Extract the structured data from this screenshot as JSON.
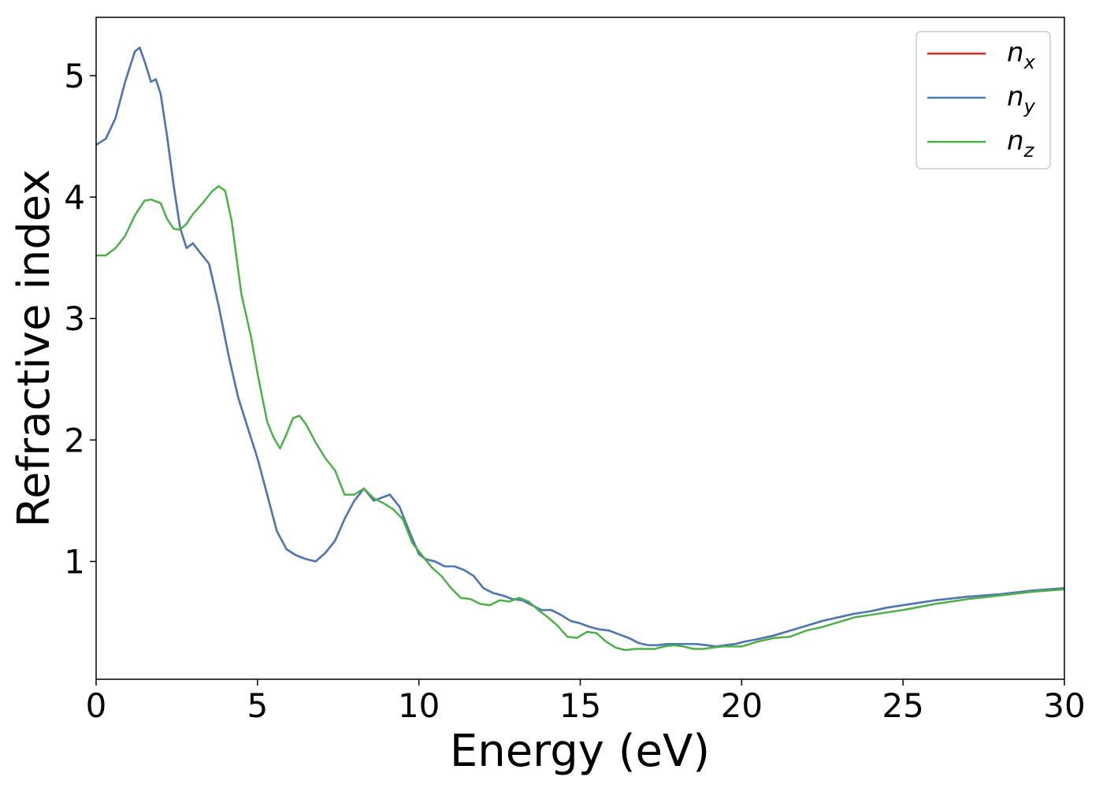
{
  "chart_data": {
    "type": "line",
    "title": "",
    "xlabel": "Energy (eV)",
    "ylabel": "Refractive index",
    "xlim": [
      0,
      30
    ],
    "ylim": [
      0.03,
      5.48
    ],
    "xticks": [
      0,
      5,
      10,
      15,
      20,
      25,
      30
    ],
    "yticks": [
      1,
      2,
      3,
      4,
      5
    ],
    "grid": false,
    "legend": "top-right",
    "series": [
      {
        "name": "n_x",
        "label_base": "n",
        "label_sub": "x",
        "color": "#d62728",
        "x": [
          0,
          0.3,
          0.6,
          0.9,
          1.2,
          1.35,
          1.5,
          1.7,
          1.85,
          2.0,
          2.2,
          2.4,
          2.6,
          2.8,
          3.0,
          3.2,
          3.5,
          3.8,
          4.1,
          4.4,
          4.7,
          5.0,
          5.3,
          5.6,
          5.9,
          6.2,
          6.5,
          6.8,
          7.1,
          7.4,
          7.7,
          8.0,
          8.3,
          8.6,
          8.9,
          9.1,
          9.4,
          9.7,
          10.0,
          10.2,
          10.5,
          10.8,
          11.1,
          11.4,
          11.7,
          12.0,
          12.3,
          12.6,
          12.9,
          13.2,
          13.5,
          13.8,
          14.1,
          14.4,
          14.7,
          15.0,
          15.3,
          15.6,
          15.9,
          16.2,
          16.5,
          16.8,
          17.1,
          17.4,
          17.7,
          18.0,
          18.3,
          18.6,
          18.9,
          19.2,
          19.5,
          19.8,
          20.1,
          20.5,
          21.0,
          21.5,
          22.0,
          22.5,
          23.0,
          23.5,
          24.0,
          24.5,
          25.0,
          26.0,
          27.0,
          28.0,
          29.0,
          30.0
        ],
        "y": [
          4.43,
          4.48,
          4.65,
          4.95,
          5.2,
          5.23,
          5.12,
          4.95,
          4.97,
          4.85,
          4.5,
          4.1,
          3.75,
          3.58,
          3.62,
          3.55,
          3.45,
          3.1,
          2.7,
          2.35,
          2.1,
          1.85,
          1.55,
          1.25,
          1.1,
          1.05,
          1.02,
          1.0,
          1.07,
          1.17,
          1.35,
          1.5,
          1.6,
          1.5,
          1.53,
          1.55,
          1.45,
          1.25,
          1.06,
          1.02,
          1.0,
          0.96,
          0.96,
          0.93,
          0.88,
          0.78,
          0.74,
          0.72,
          0.69,
          0.68,
          0.64,
          0.6,
          0.6,
          0.56,
          0.51,
          0.49,
          0.46,
          0.44,
          0.43,
          0.4,
          0.37,
          0.33,
          0.31,
          0.31,
          0.32,
          0.32,
          0.32,
          0.32,
          0.31,
          0.3,
          0.31,
          0.32,
          0.34,
          0.36,
          0.39,
          0.43,
          0.47,
          0.51,
          0.54,
          0.57,
          0.59,
          0.62,
          0.64,
          0.68,
          0.71,
          0.73,
          0.76,
          0.78
        ]
      },
      {
        "name": "n_y",
        "label_base": "n",
        "label_sub": "y",
        "color": "#4a7ab5",
        "x": [
          0,
          0.3,
          0.6,
          0.9,
          1.2,
          1.35,
          1.5,
          1.7,
          1.85,
          2.0,
          2.2,
          2.4,
          2.6,
          2.8,
          3.0,
          3.2,
          3.5,
          3.8,
          4.1,
          4.4,
          4.7,
          5.0,
          5.3,
          5.6,
          5.9,
          6.2,
          6.5,
          6.8,
          7.1,
          7.4,
          7.7,
          8.0,
          8.3,
          8.6,
          8.9,
          9.1,
          9.4,
          9.7,
          10.0,
          10.2,
          10.5,
          10.8,
          11.1,
          11.4,
          11.7,
          12.0,
          12.3,
          12.6,
          12.9,
          13.2,
          13.5,
          13.8,
          14.1,
          14.4,
          14.7,
          15.0,
          15.3,
          15.6,
          15.9,
          16.2,
          16.5,
          16.8,
          17.1,
          17.4,
          17.7,
          18.0,
          18.3,
          18.6,
          18.9,
          19.2,
          19.5,
          19.8,
          20.1,
          20.5,
          21.0,
          21.5,
          22.0,
          22.5,
          23.0,
          23.5,
          24.0,
          24.5,
          25.0,
          26.0,
          27.0,
          28.0,
          29.0,
          30.0
        ],
        "y": [
          4.43,
          4.48,
          4.65,
          4.95,
          5.2,
          5.23,
          5.12,
          4.95,
          4.97,
          4.85,
          4.5,
          4.1,
          3.75,
          3.58,
          3.62,
          3.55,
          3.45,
          3.1,
          2.7,
          2.35,
          2.1,
          1.85,
          1.55,
          1.25,
          1.1,
          1.05,
          1.02,
          1.0,
          1.07,
          1.17,
          1.35,
          1.5,
          1.6,
          1.5,
          1.53,
          1.55,
          1.45,
          1.25,
          1.06,
          1.02,
          1.0,
          0.96,
          0.96,
          0.93,
          0.88,
          0.78,
          0.74,
          0.72,
          0.69,
          0.68,
          0.64,
          0.6,
          0.6,
          0.56,
          0.51,
          0.49,
          0.46,
          0.44,
          0.43,
          0.4,
          0.37,
          0.33,
          0.31,
          0.31,
          0.32,
          0.32,
          0.32,
          0.32,
          0.31,
          0.3,
          0.31,
          0.32,
          0.34,
          0.36,
          0.39,
          0.43,
          0.47,
          0.51,
          0.54,
          0.57,
          0.59,
          0.62,
          0.64,
          0.68,
          0.71,
          0.73,
          0.76,
          0.78
        ]
      },
      {
        "name": "n_z",
        "label_base": "n",
        "label_sub": "z",
        "color": "#4daf4a",
        "x": [
          0,
          0.3,
          0.6,
          0.9,
          1.2,
          1.5,
          1.7,
          2.0,
          2.2,
          2.4,
          2.6,
          2.8,
          3.0,
          3.3,
          3.6,
          3.8,
          4.0,
          4.2,
          4.5,
          4.8,
          5.0,
          5.3,
          5.5,
          5.7,
          5.9,
          6.1,
          6.3,
          6.5,
          6.8,
          7.1,
          7.4,
          7.7,
          8.0,
          8.3,
          8.6,
          8.9,
          9.2,
          9.5,
          9.8,
          10.1,
          10.4,
          10.7,
          11.0,
          11.3,
          11.6,
          11.9,
          12.2,
          12.5,
          12.8,
          13.1,
          13.4,
          13.7,
          14.0,
          14.3,
          14.6,
          14.9,
          15.2,
          15.5,
          15.8,
          16.1,
          16.4,
          16.7,
          17.0,
          17.3,
          17.6,
          17.9,
          18.2,
          18.5,
          18.8,
          19.1,
          19.4,
          19.7,
          20.0,
          20.5,
          21.0,
          21.5,
          22.0,
          22.5,
          23.0,
          23.5,
          24.0,
          24.5,
          25.0,
          26.0,
          27.0,
          28.0,
          29.0,
          30.0
        ],
        "y": [
          3.52,
          3.52,
          3.58,
          3.68,
          3.85,
          3.97,
          3.98,
          3.95,
          3.82,
          3.74,
          3.73,
          3.78,
          3.86,
          3.95,
          4.05,
          4.09,
          4.05,
          3.8,
          3.2,
          2.85,
          2.55,
          2.15,
          2.02,
          1.93,
          2.05,
          2.18,
          2.2,
          2.13,
          1.98,
          1.85,
          1.75,
          1.55,
          1.55,
          1.6,
          1.52,
          1.48,
          1.43,
          1.35,
          1.15,
          1.05,
          0.95,
          0.88,
          0.78,
          0.7,
          0.69,
          0.65,
          0.64,
          0.68,
          0.67,
          0.7,
          0.67,
          0.6,
          0.54,
          0.47,
          0.38,
          0.37,
          0.42,
          0.41,
          0.34,
          0.29,
          0.27,
          0.28,
          0.28,
          0.28,
          0.3,
          0.31,
          0.3,
          0.28,
          0.28,
          0.29,
          0.3,
          0.3,
          0.3,
          0.34,
          0.37,
          0.38,
          0.43,
          0.46,
          0.5,
          0.54,
          0.56,
          0.58,
          0.6,
          0.65,
          0.69,
          0.72,
          0.75,
          0.77
        ]
      }
    ]
  }
}
